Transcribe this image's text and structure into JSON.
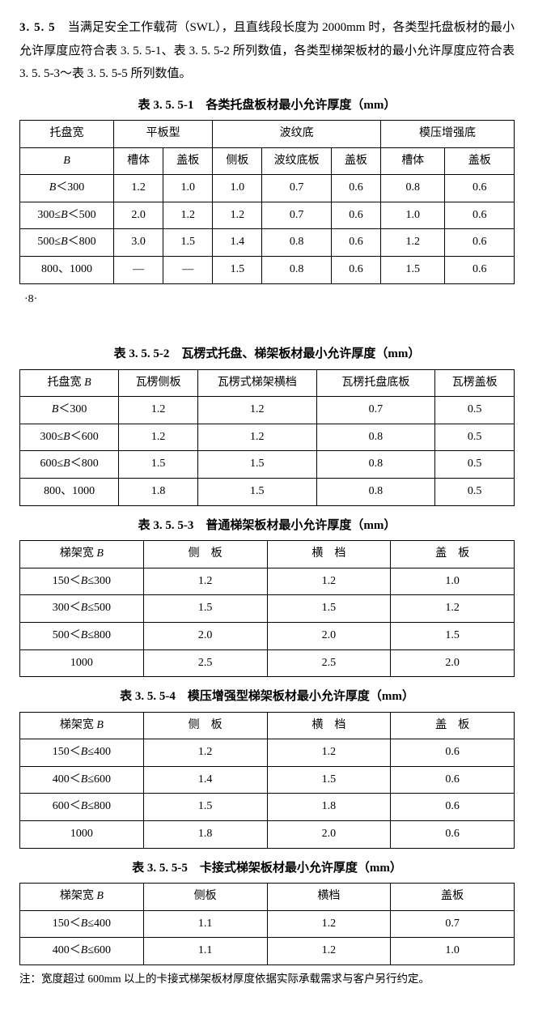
{
  "section_number": "3. 5. 5",
  "paragraph": "当满足安全工作载荷（SWL），且直线段长度为 2000mm 时，各类型托盘板材的最小允许厚度应符合表 3. 5. 5-1、表 3. 5. 5-2 所列数值，各类型梯架板材的最小允许厚度应符合表 3. 5. 5-3～表 3. 5. 5-5 所列数值。",
  "page_marker": "·8·",
  "tables": {
    "t1": {
      "caption": "表 3. 5. 5-1　各类托盘板材最小允许厚度（mm）",
      "header_row1": {
        "c0": "托盘宽",
        "c1": "平板型",
        "c2": "波纹底",
        "c3": "模压增强底"
      },
      "header_row2": {
        "c0": "B",
        "c1": "槽体",
        "c2": "盖板",
        "c3": "侧板",
        "c4": "波纹底板",
        "c5": "盖板",
        "c6": "槽体",
        "c7": "盖板"
      },
      "rows": [
        {
          "c0": "B＜300",
          "c1": "1.2",
          "c2": "1.0",
          "c3": "1.0",
          "c4": "0.7",
          "c5": "0.6",
          "c6": "0.8",
          "c7": "0.6"
        },
        {
          "c0": "300≤B＜500",
          "c1": "2.0",
          "c2": "1.2",
          "c3": "1.2",
          "c4": "0.7",
          "c5": "0.6",
          "c6": "1.0",
          "c7": "0.6"
        },
        {
          "c0": "500≤B＜800",
          "c1": "3.0",
          "c2": "1.5",
          "c3": "1.4",
          "c4": "0.8",
          "c5": "0.6",
          "c6": "1.2",
          "c7": "0.6"
        },
        {
          "c0": "800、1000",
          "c1": "—",
          "c2": "—",
          "c3": "1.5",
          "c4": "0.8",
          "c5": "0.6",
          "c6": "1.5",
          "c7": "0.6"
        }
      ],
      "col_widths": [
        "19%",
        "10%",
        "10%",
        "10%",
        "14%",
        "10%",
        "13%",
        "14%"
      ]
    },
    "t2": {
      "caption": "表 3. 5. 5-2　瓦楞式托盘、梯架板材最小允许厚度（mm）",
      "header": {
        "c0": "托盘宽 B",
        "c1": "瓦楞侧板",
        "c2": "瓦楞式梯架横档",
        "c3": "瓦楞托盘底板",
        "c4": "瓦楞盖板"
      },
      "rows": [
        {
          "c0": "B＜300",
          "c1": "1.2",
          "c2": "1.2",
          "c3": "0.7",
          "c4": "0.5"
        },
        {
          "c0": "300≤B＜600",
          "c1": "1.2",
          "c2": "1.2",
          "c3": "0.8",
          "c4": "0.5"
        },
        {
          "c0": "600≤B＜800",
          "c1": "1.5",
          "c2": "1.5",
          "c3": "0.8",
          "c4": "0.5"
        },
        {
          "c0": "800、1000",
          "c1": "1.8",
          "c2": "1.5",
          "c3": "0.8",
          "c4": "0.5"
        }
      ],
      "col_widths": [
        "20%",
        "16%",
        "24%",
        "24%",
        "16%"
      ]
    },
    "t3": {
      "caption": "表 3. 5. 5-3　普通梯架板材最小允许厚度（mm）",
      "header": {
        "c0": "梯架宽 B",
        "c1": "侧　板",
        "c2": "横　档",
        "c3": "盖　板"
      },
      "rows": [
        {
          "c0": "150＜B≤300",
          "c1": "1.2",
          "c2": "1.2",
          "c3": "1.0"
        },
        {
          "c0": "300＜B≤500",
          "c1": "1.5",
          "c2": "1.5",
          "c3": "1.2"
        },
        {
          "c0": "500＜B≤800",
          "c1": "2.0",
          "c2": "2.0",
          "c3": "1.5"
        },
        {
          "c0": "1000",
          "c1": "2.5",
          "c2": "2.5",
          "c3": "2.0"
        }
      ],
      "col_widths": [
        "25%",
        "25%",
        "25%",
        "25%"
      ]
    },
    "t4": {
      "caption": "表 3. 5. 5-4　模压增强型梯架板材最小允许厚度（mm）",
      "header": {
        "c0": "梯架宽 B",
        "c1": "侧　板",
        "c2": "横　档",
        "c3": "盖　板"
      },
      "rows": [
        {
          "c0": "150＜B≤400",
          "c1": "1.2",
          "c2": "1.2",
          "c3": "0.6"
        },
        {
          "c0": "400＜B≤600",
          "c1": "1.4",
          "c2": "1.5",
          "c3": "0.6"
        },
        {
          "c0": "600＜B≤800",
          "c1": "1.5",
          "c2": "1.8",
          "c3": "0.6"
        },
        {
          "c0": "1000",
          "c1": "1.8",
          "c2": "2.0",
          "c3": "0.6"
        }
      ],
      "col_widths": [
        "25%",
        "25%",
        "25%",
        "25%"
      ]
    },
    "t5": {
      "caption": "表 3. 5. 5-5　卡接式梯架板材最小允许厚度（mm）",
      "header": {
        "c0": "梯架宽 B",
        "c1": "侧板",
        "c2": "横档",
        "c3": "盖板"
      },
      "rows": [
        {
          "c0": "150＜B≤400",
          "c1": "1.1",
          "c2": "1.2",
          "c3": "0.7"
        },
        {
          "c0": "400＜B≤600",
          "c1": "1.1",
          "c2": "1.2",
          "c3": "1.0"
        }
      ],
      "col_widths": [
        "25%",
        "25%",
        "25%",
        "25%"
      ]
    }
  },
  "note": "注：宽度超过 600mm 以上的卡接式梯架板材厚度依据实际承载需求与客户另行约定。"
}
